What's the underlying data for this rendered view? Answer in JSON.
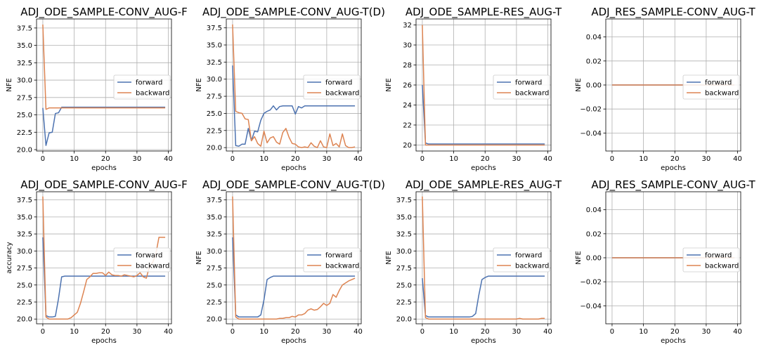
{
  "colors": {
    "forward": "#4c72b0",
    "backward": "#dd8452",
    "grid": "#b0b0b0"
  },
  "legend_labels": [
    "forward",
    "backward"
  ],
  "chart_data": [
    {
      "type": "line",
      "title": "ADJ_ODE_SAMPLE-CONV_AUG-F",
      "xlabel": "epochs",
      "ylabel": "NFE",
      "xlim": [
        -2,
        41
      ],
      "ylim": [
        19.8,
        38.8
      ],
      "xticks": [
        0,
        10,
        20,
        30,
        40
      ],
      "yticks": [
        20.0,
        22.5,
        25.0,
        27.5,
        30.0,
        32.5,
        35.0,
        37.5
      ],
      "ytick_labels": [
        "20.0",
        "22.5",
        "25.0",
        "27.5",
        "30.0",
        "32.5",
        "35.0",
        "37.5"
      ],
      "legend": "center-right",
      "series": [
        {
          "name": "forward",
          "x": [
            0,
            1,
            2,
            3,
            4,
            5,
            6,
            7,
            8,
            39
          ],
          "y": [
            26.0,
            20.6,
            22.4,
            22.5,
            25.2,
            25.3,
            26.1,
            26.1,
            26.1,
            26.1
          ]
        },
        {
          "name": "backward",
          "x": [
            0,
            1,
            2,
            3,
            4,
            5,
            6,
            39
          ],
          "y": [
            38.0,
            25.8,
            26.0,
            26.0,
            26.0,
            26.0,
            26.0,
            26.0
          ]
        }
      ]
    },
    {
      "type": "line",
      "title": "ADJ_ODE_SAMPLE-CONV_AUG-T(D)",
      "xlabel": "epochs",
      "ylabel": "NFE",
      "xlim": [
        -2,
        41
      ],
      "ylim": [
        19.5,
        38.8
      ],
      "xticks": [
        0,
        10,
        20,
        30,
        40
      ],
      "yticks": [
        20.0,
        22.5,
        25.0,
        27.5,
        30.0,
        32.5,
        35.0,
        37.5
      ],
      "ytick_labels": [
        "20.0",
        "22.5",
        "25.0",
        "27.5",
        "30.0",
        "32.5",
        "35.0",
        "37.5"
      ],
      "legend": "center-right",
      "series": [
        {
          "name": "forward",
          "x": [
            0,
            1,
            2,
            3,
            4,
            5,
            6,
            7,
            8,
            9,
            10,
            11,
            12,
            13,
            14,
            15,
            16,
            17,
            18,
            19,
            20,
            21,
            22,
            23,
            24,
            25,
            26,
            27,
            28,
            29,
            30,
            31,
            32,
            33,
            34,
            35,
            36,
            37,
            38,
            39
          ],
          "y": [
            32.0,
            20.3,
            20.2,
            20.5,
            20.5,
            22.8,
            21.0,
            22.4,
            22.3,
            24.0,
            25.0,
            25.3,
            25.5,
            26.1,
            25.5,
            26.0,
            26.1,
            26.1,
            26.1,
            26.1,
            24.9,
            26.0,
            25.8,
            26.1,
            26.1,
            26.1,
            26.1,
            26.1,
            26.1,
            26.1,
            26.1,
            26.1,
            26.1,
            26.1,
            26.1,
            26.1,
            26.1,
            26.1,
            26.1,
            26.1
          ]
        },
        {
          "name": "backward",
          "x": [
            0,
            1,
            2,
            3,
            4,
            5,
            6,
            7,
            8,
            9,
            10,
            11,
            12,
            13,
            14,
            15,
            16,
            17,
            18,
            19,
            20,
            21,
            22,
            23,
            24,
            25,
            26,
            27,
            28,
            29,
            30,
            31,
            32,
            33,
            34,
            35,
            36,
            37,
            38,
            39
          ],
          "y": [
            38.0,
            25.3,
            25.1,
            25.0,
            24.2,
            24.1,
            21.0,
            21.6,
            20.6,
            20.2,
            22.4,
            20.7,
            21.4,
            21.6,
            20.8,
            20.5,
            22.2,
            22.8,
            21.5,
            20.6,
            20.5,
            20.1,
            20.0,
            20.1,
            20.0,
            20.7,
            20.2,
            20.0,
            21.0,
            20.1,
            20.0,
            22.0,
            20.3,
            20.6,
            20.1,
            22.0,
            20.3,
            20.0,
            20.0,
            20.1
          ]
        }
      ]
    },
    {
      "type": "line",
      "title": "ADJ_ODE_SAMPLE-RES_AUG-T",
      "xlabel": "epochs",
      "ylabel": "NFE",
      "xlim": [
        -2,
        41
      ],
      "ylim": [
        19.4,
        32.6
      ],
      "xticks": [
        0,
        10,
        20,
        30,
        40
      ],
      "yticks": [
        20,
        22,
        24,
        26,
        28,
        30,
        32
      ],
      "ytick_labels": [
        "20",
        "22",
        "24",
        "26",
        "28",
        "30",
        "32"
      ],
      "legend": "center-right",
      "series": [
        {
          "name": "forward",
          "x": [
            0,
            1,
            2,
            39
          ],
          "y": [
            26.0,
            20.2,
            20.1,
            20.1
          ]
        },
        {
          "name": "backward",
          "x": [
            0,
            1,
            2,
            39
          ],
          "y": [
            32.0,
            20.0,
            20.0,
            20.0
          ]
        }
      ]
    },
    {
      "type": "line",
      "title": "ADJ_RES_SAMPLE-CONV_AUG-T",
      "xlabel": "epochs",
      "ylabel": "NFE",
      "xlim": [
        -2,
        41
      ],
      "ylim": [
        -0.055,
        0.055
      ],
      "xticks": [
        0,
        10,
        20,
        30,
        40
      ],
      "yticks": [
        -0.04,
        -0.02,
        0.0,
        0.02,
        0.04
      ],
      "ytick_labels": [
        "−0.04",
        "−0.02",
        "0.00",
        "0.02",
        "0.04"
      ],
      "legend": "center-right",
      "series": [
        {
          "name": "forward",
          "x": [
            0,
            39
          ],
          "y": [
            0.0,
            0.0
          ]
        },
        {
          "name": "backward",
          "x": [
            0,
            39
          ],
          "y": [
            0.0,
            0.0
          ]
        }
      ]
    },
    {
      "type": "line",
      "title": "ADJ_ODE_SAMPLE-CONV_AUG-F",
      "xlabel": "epochs",
      "ylabel": "accuracy",
      "xlim": [
        -2,
        41
      ],
      "ylim": [
        19.3,
        38.7
      ],
      "xticks": [
        0,
        10,
        20,
        30,
        40
      ],
      "yticks": [
        20.0,
        22.5,
        25.0,
        27.5,
        30.0,
        32.5,
        35.0,
        37.5
      ],
      "ytick_labels": [
        "20.0",
        "22.5",
        "25.0",
        "27.5",
        "30.0",
        "32.5",
        "35.0",
        "37.5"
      ],
      "legend": "center-right",
      "series": [
        {
          "name": "forward",
          "x": [
            0,
            1,
            2,
            3,
            4,
            5,
            6,
            7,
            8,
            9,
            10,
            39
          ],
          "y": [
            32.0,
            20.5,
            20.3,
            20.3,
            20.4,
            23.0,
            26.2,
            26.3,
            26.3,
            26.3,
            26.3,
            26.3
          ]
        },
        {
          "name": "backward",
          "x": [
            0,
            1,
            2,
            3,
            4,
            5,
            6,
            7,
            8,
            9,
            10,
            11,
            12,
            13,
            14,
            15,
            16,
            17,
            18,
            19,
            20,
            21,
            22,
            23,
            24,
            25,
            26,
            27,
            28,
            29,
            30,
            31,
            32,
            33,
            34,
            35,
            36,
            37,
            38,
            39
          ],
          "y": [
            38.0,
            20.3,
            20.0,
            20.0,
            20.0,
            20.0,
            20.0,
            20.0,
            20.0,
            20.2,
            20.6,
            21.0,
            22.3,
            24.0,
            25.8,
            26.2,
            26.7,
            26.7,
            26.8,
            26.8,
            26.4,
            26.9,
            26.5,
            26.4,
            26.4,
            26.3,
            26.5,
            26.4,
            26.3,
            26.2,
            26.4,
            26.8,
            26.2,
            26.0,
            27.8,
            28.3,
            29.5,
            32.0,
            32.0,
            32.0
          ]
        }
      ]
    },
    {
      "type": "line",
      "title": "ADJ_ODE_SAMPLE-CONV_AUG-T(D)",
      "xlabel": "epochs",
      "ylabel": "NFE",
      "xlim": [
        -2,
        41
      ],
      "ylim": [
        19.3,
        38.7
      ],
      "xticks": [
        0,
        10,
        20,
        30,
        40
      ],
      "yticks": [
        20.0,
        22.5,
        25.0,
        27.5,
        30.0,
        32.5,
        35.0,
        37.5
      ],
      "ytick_labels": [
        "20.0",
        "22.5",
        "25.0",
        "27.5",
        "30.0",
        "32.5",
        "35.0",
        "37.5"
      ],
      "legend": "center-right",
      "series": [
        {
          "name": "forward",
          "x": [
            0,
            1,
            2,
            3,
            4,
            5,
            6,
            7,
            8,
            9,
            10,
            11,
            12,
            13,
            14,
            39
          ],
          "y": [
            32.0,
            20.6,
            20.3,
            20.3,
            20.3,
            20.3,
            20.3,
            20.3,
            20.3,
            20.6,
            22.8,
            25.8,
            26.1,
            26.3,
            26.3,
            26.3
          ]
        },
        {
          "name": "backward",
          "x": [
            0,
            1,
            2,
            3,
            4,
            5,
            6,
            7,
            8,
            9,
            10,
            11,
            12,
            13,
            14,
            15,
            16,
            17,
            18,
            19,
            20,
            21,
            22,
            23,
            24,
            25,
            26,
            27,
            28,
            29,
            30,
            31,
            32,
            33,
            34,
            35,
            36,
            37,
            38,
            39
          ],
          "y": [
            38.0,
            20.3,
            20.0,
            20.0,
            20.0,
            20.0,
            20.0,
            20.0,
            20.0,
            20.0,
            20.0,
            20.0,
            20.0,
            20.0,
            20.0,
            20.1,
            20.1,
            20.2,
            20.2,
            20.4,
            20.3,
            20.6,
            20.6,
            20.8,
            21.3,
            21.5,
            21.3,
            21.4,
            21.8,
            22.3,
            22.0,
            22.3,
            23.6,
            23.2,
            24.2,
            25.0,
            25.3,
            25.6,
            25.8,
            26.0
          ]
        }
      ]
    },
    {
      "type": "line",
      "title": "ADJ_ODE_SAMPLE-RES_AUG-T",
      "xlabel": "epochs",
      "ylabel": "NFE",
      "xlim": [
        -2,
        41
      ],
      "ylim": [
        19.3,
        38.7
      ],
      "xticks": [
        0,
        10,
        20,
        30,
        40
      ],
      "yticks": [
        20.0,
        22.5,
        25.0,
        27.5,
        30.0,
        32.5,
        35.0,
        37.5
      ],
      "ytick_labels": [
        "20.0",
        "22.5",
        "25.0",
        "27.5",
        "30.0",
        "32.5",
        "35.0",
        "37.5"
      ],
      "legend": "center-right",
      "series": [
        {
          "name": "forward",
          "x": [
            0,
            1,
            2,
            3,
            4,
            5,
            6,
            7,
            8,
            9,
            10,
            11,
            12,
            13,
            14,
            15,
            16,
            17,
            18,
            19,
            20,
            21,
            22,
            39
          ],
          "y": [
            26.0,
            20.5,
            20.3,
            20.3,
            20.3,
            20.3,
            20.3,
            20.3,
            20.3,
            20.3,
            20.3,
            20.3,
            20.3,
            20.3,
            20.3,
            20.3,
            20.4,
            20.8,
            23.5,
            25.8,
            26.1,
            26.3,
            26.3,
            26.3
          ]
        },
        {
          "name": "backward",
          "x": [
            0,
            1,
            2,
            3,
            29,
            30,
            31,
            32,
            36,
            37,
            38,
            39
          ],
          "y": [
            38.0,
            20.2,
            20.0,
            20.0,
            20.0,
            20.0,
            20.1,
            20.0,
            20.0,
            20.0,
            20.1,
            20.1
          ]
        }
      ]
    },
    {
      "type": "line",
      "title": "ADJ_RES_SAMPLE-CONV_AUG-T",
      "xlabel": "epochs",
      "ylabel": "NFE",
      "xlim": [
        -2,
        41
      ],
      "ylim": [
        -0.055,
        0.055
      ],
      "xticks": [
        0,
        10,
        20,
        30,
        40
      ],
      "yticks": [
        -0.04,
        -0.02,
        0.0,
        0.02,
        0.04
      ],
      "ytick_labels": [
        "−0.04",
        "−0.02",
        "0.00",
        "0.02",
        "0.04"
      ],
      "legend": "center-right",
      "series": [
        {
          "name": "forward",
          "x": [
            0,
            39
          ],
          "y": [
            0.0,
            0.0
          ]
        },
        {
          "name": "backward",
          "x": [
            0,
            39
          ],
          "y": [
            0.0,
            0.0
          ]
        }
      ]
    }
  ]
}
